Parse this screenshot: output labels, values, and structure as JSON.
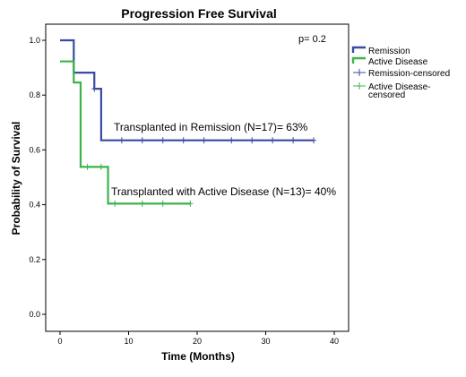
{
  "chart_data": {
    "type": "line",
    "title": "Progression Free Survival",
    "xlabel": "Time (Months)",
    "ylabel": "Probability of Survival",
    "xlim": [
      0,
      40
    ],
    "ylim": [
      0,
      1
    ],
    "x_ticks": [
      "0",
      "10",
      "20",
      "30",
      "40"
    ],
    "y_ticks": [
      "0.0",
      "0.2",
      "0.4",
      "0.6",
      "0.8",
      "1.0"
    ],
    "x_tick_values": [
      0,
      10,
      20,
      30,
      40
    ],
    "y_tick_values": [
      0,
      0.2,
      0.4,
      0.6,
      0.8,
      1.0
    ],
    "grid": false,
    "legend_position": "top-right",
    "p_value_text": "p= 0.2",
    "series": [
      {
        "name": "Remission",
        "color": "#3a4ba3",
        "steps": [
          [
            0,
            1.0
          ],
          [
            2,
            0.882
          ],
          [
            5,
            0.823
          ],
          [
            6,
            0.635
          ],
          [
            37,
            0.635
          ]
        ],
        "censored_label": "Remission-censored",
        "censored": [
          [
            5,
            0.823
          ],
          [
            9,
            0.635
          ],
          [
            12,
            0.635
          ],
          [
            15,
            0.635
          ],
          [
            18,
            0.635
          ],
          [
            21,
            0.635
          ],
          [
            25,
            0.635
          ],
          [
            28,
            0.635
          ],
          [
            31,
            0.635
          ],
          [
            34,
            0.635
          ],
          [
            37,
            0.635
          ]
        ],
        "annotation": "Transplanted in Remission (N=17)= 63%"
      },
      {
        "name": "Active Disease",
        "color": "#3bb44a",
        "steps": [
          [
            0,
            0.923
          ],
          [
            2,
            0.846
          ],
          [
            3,
            0.538
          ],
          [
            7,
            0.404
          ],
          [
            19,
            0.404
          ]
        ],
        "censored_label": "Active Disease-censored",
        "censored": [
          [
            4,
            0.538
          ],
          [
            6,
            0.538
          ],
          [
            8,
            0.404
          ],
          [
            12,
            0.404
          ],
          [
            15,
            0.404
          ],
          [
            19,
            0.404
          ]
        ],
        "annotation": "Transplanted with Active Disease (N=13)= 40%"
      }
    ]
  }
}
